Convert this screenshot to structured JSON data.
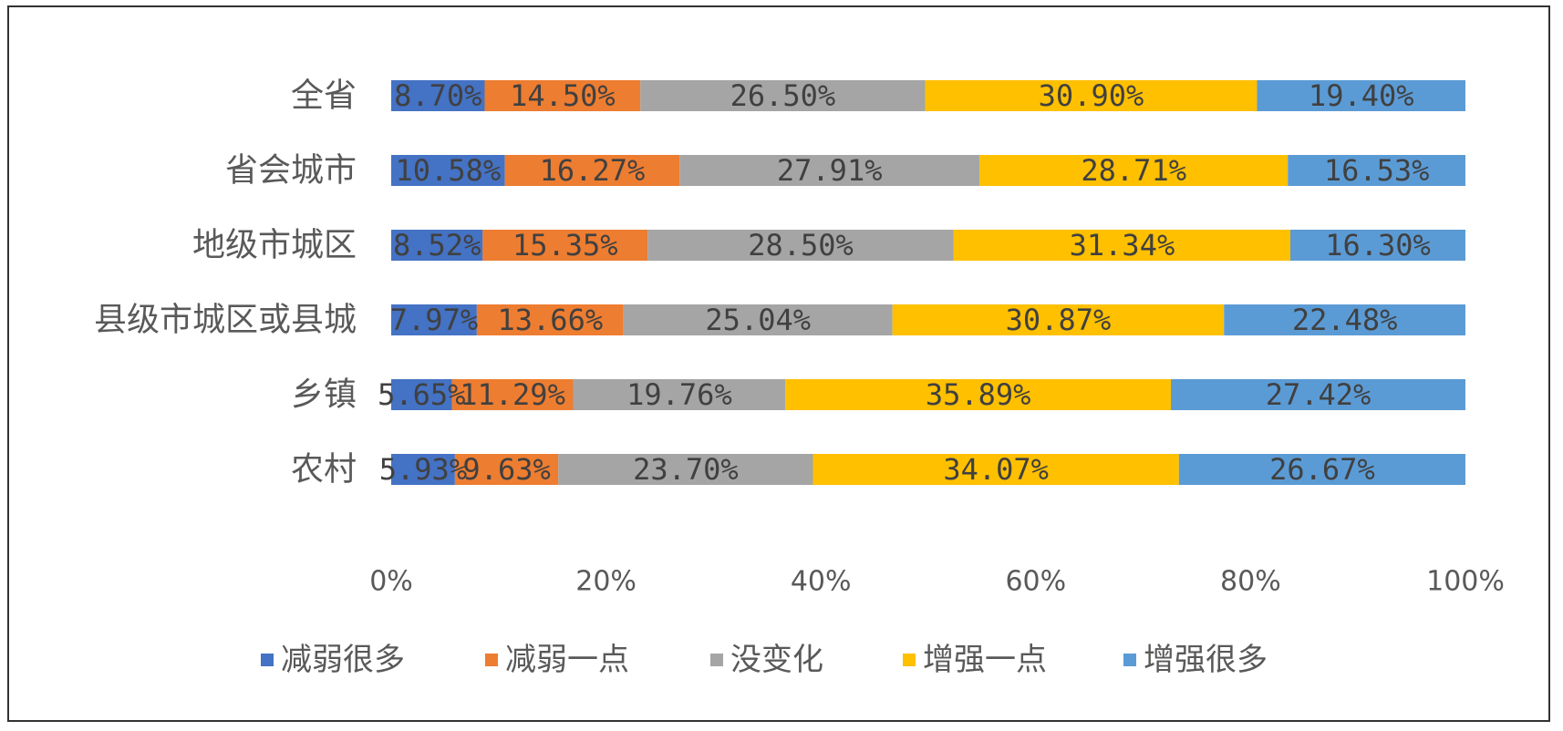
{
  "chart_data": {
    "type": "bar",
    "orientation": "horizontal",
    "stacked": "percent",
    "categories": [
      "全省",
      "省会城市",
      "地级市城区",
      "县级市城区或县城",
      "乡镇",
      "农村"
    ],
    "series": [
      {
        "name": "减弱很多",
        "color": "#4472C4",
        "values": [
          8.7,
          10.58,
          8.52,
          7.97,
          5.65,
          5.93
        ],
        "labels": [
          "8.70%",
          "10.58%",
          "8.52%",
          "7.97%",
          "5.65%",
          "5.93%"
        ]
      },
      {
        "name": "减弱一点",
        "color": "#ED7D31",
        "values": [
          14.5,
          16.27,
          15.35,
          13.66,
          11.29,
          9.63
        ],
        "labels": [
          "14.50%",
          "16.27%",
          "15.35%",
          "13.66%",
          "11.29%",
          "9.63%"
        ]
      },
      {
        "name": "没变化",
        "color": "#A5A5A5",
        "values": [
          26.5,
          27.91,
          28.5,
          25.04,
          19.76,
          23.7
        ],
        "labels": [
          "26.50%",
          "27.91%",
          "28.50%",
          "25.04%",
          "19.76%",
          "23.70%"
        ]
      },
      {
        "name": "增强一点",
        "color": "#FFC000",
        "values": [
          30.9,
          28.71,
          31.34,
          30.87,
          35.89,
          34.07
        ],
        "labels": [
          "30.90%",
          "28.71%",
          "31.34%",
          "30.87%",
          "35.89%",
          "34.07%"
        ]
      },
      {
        "name": "增强很多",
        "color": "#5B9BD5",
        "values": [
          19.4,
          16.53,
          16.3,
          22.48,
          27.42,
          26.67
        ],
        "labels": [
          "19.40%",
          "16.53%",
          "16.30%",
          "22.48%",
          "27.42%",
          "26.67%"
        ]
      }
    ],
    "x_ticks": [
      "0%",
      "20%",
      "40%",
      "60%",
      "80%",
      "100%"
    ],
    "xlim": [
      0,
      100
    ],
    "grid": false,
    "legend_position": "bottom"
  }
}
